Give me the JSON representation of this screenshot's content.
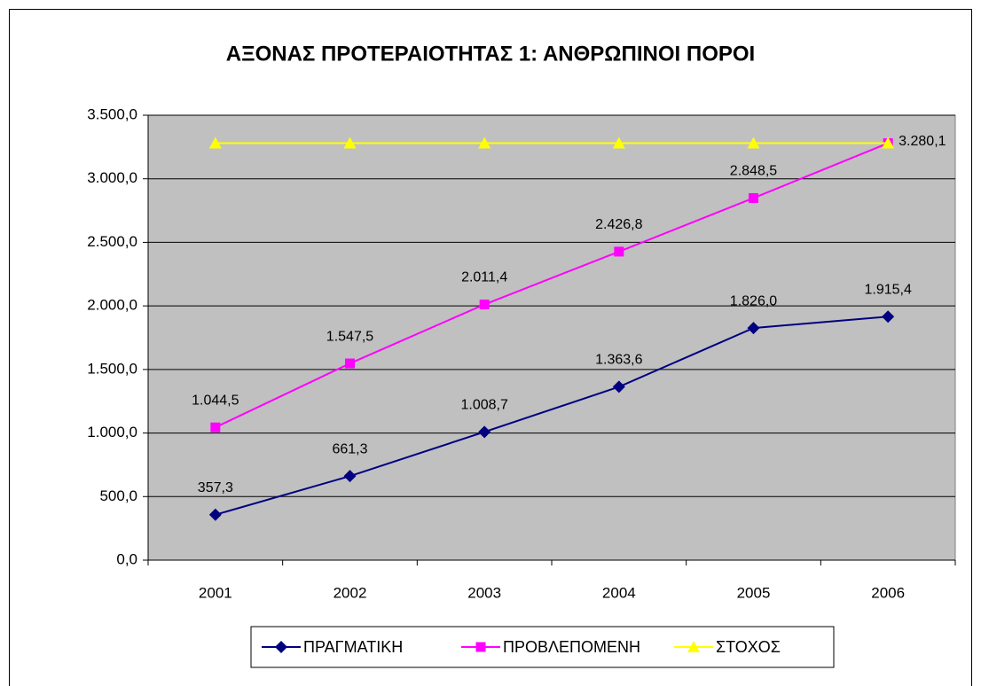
{
  "chart_data": {
    "type": "line",
    "title": "ΑΞΟΝΑΣ ΠΡΟΤΕΡΑΙΟΤΗΤΑΣ 1: ΑΝΘΡΩΠΙΝΟΙ ΠΟΡΟΙ",
    "categories": [
      "2001",
      "2002",
      "2003",
      "2004",
      "2005",
      "2006"
    ],
    "series": [
      {
        "name": "ΠΡΑΓΜΑΤΙΚΗ",
        "color": "#000080",
        "marker": "diamond",
        "values": [
          357.3,
          661.3,
          1008.7,
          1363.6,
          1826.0,
          1915.4
        ],
        "value_labels": [
          "357,3",
          "661,3",
          "1.008,7",
          "1.363,6",
          "1.826,0",
          "1.915,4"
        ]
      },
      {
        "name": "ΠΡΟΒΛΕΠΟΜΕΝΗ",
        "color": "#ff00ff",
        "marker": "square",
        "values": [
          1044.5,
          1547.5,
          2011.4,
          2426.8,
          2848.5,
          3280.1
        ],
        "value_labels": [
          "1.044,5",
          "1.547,5",
          "2.011,4",
          "2.426,8",
          "2.848,5",
          "3.280,1"
        ]
      },
      {
        "name": "ΣΤΟΧΟΣ",
        "color": "#ffff00",
        "marker": "triangle",
        "values": [
          3280.1,
          3280.1,
          3280.1,
          3280.1,
          3280.1,
          3280.1
        ]
      }
    ],
    "ylim": [
      0,
      3500
    ],
    "yticks": [
      {
        "value": 0,
        "label": "0,0"
      },
      {
        "value": 500,
        "label": "500,0"
      },
      {
        "value": 1000,
        "label": "1.000,0"
      },
      {
        "value": 1500,
        "label": "1.500,0"
      },
      {
        "value": 2000,
        "label": "2.000,0"
      },
      {
        "value": 2500,
        "label": "2.500,0"
      },
      {
        "value": 3000,
        "label": "3.000,0"
      },
      {
        "value": 3500,
        "label": "3.500,0"
      }
    ],
    "grid": true,
    "legend": "bottom",
    "plot_background": "#c0c0c0"
  }
}
